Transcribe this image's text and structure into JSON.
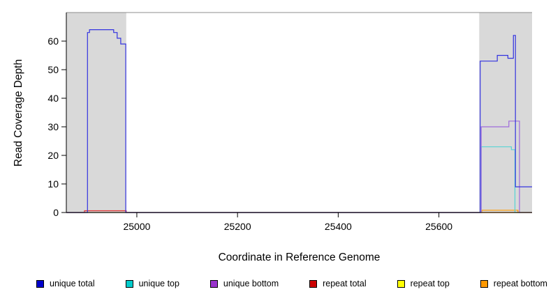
{
  "chart_data": {
    "type": "line",
    "title": "",
    "xlabel": "Coordinate in Reference Genome",
    "ylabel": "Read Coverage Depth",
    "xlim": [
      24860,
      25785
    ],
    "ylim": [
      0,
      70
    ],
    "xticks": [
      25000,
      25200,
      25400,
      25600
    ],
    "yticks": [
      0,
      10,
      20,
      30,
      40,
      50,
      60
    ],
    "grid": false,
    "legend_position": "bottom",
    "shaded_regions": [
      {
        "x0": 24860,
        "x1": 24979,
        "color": "#d9d9d9"
      },
      {
        "x0": 25680,
        "x1": 25785,
        "color": "#d9d9d9"
      }
    ],
    "series": [
      {
        "name": "repeat top",
        "color": "#FFFF00",
        "points": [
          [
            24860,
            0
          ],
          [
            25785,
            0
          ]
        ]
      },
      {
        "name": "repeat bottom",
        "color": "#FF9900",
        "points": [
          [
            24860,
            0
          ],
          [
            25685,
            0
          ],
          [
            25685,
            0.8
          ],
          [
            25757,
            0.8
          ],
          [
            25757,
            0
          ],
          [
            25785,
            0
          ]
        ]
      },
      {
        "name": "repeat total",
        "color": "#E03030",
        "points": [
          [
            24860,
            0
          ],
          [
            24896,
            0
          ],
          [
            24896,
            0.6
          ],
          [
            24979,
            0.6
          ],
          [
            24979,
            0
          ],
          [
            25785,
            0
          ]
        ]
      },
      {
        "name": "unique top",
        "color": "#55D4D4",
        "points": [
          [
            24860,
            0
          ],
          [
            25684,
            0
          ],
          [
            25684,
            23
          ],
          [
            25744,
            23
          ],
          [
            25744,
            22
          ],
          [
            25751,
            22
          ],
          [
            25751,
            0
          ],
          [
            25785,
            0
          ]
        ]
      },
      {
        "name": "unique bottom",
        "color": "#9E6BDB",
        "points": [
          [
            24860,
            0
          ],
          [
            25684,
            0
          ],
          [
            25684,
            30
          ],
          [
            25739,
            30
          ],
          [
            25739,
            32
          ],
          [
            25760,
            32
          ],
          [
            25760,
            0
          ],
          [
            25785,
            0
          ]
        ]
      },
      {
        "name": "unique total",
        "color": "#3232E0",
        "points": [
          [
            24860,
            0
          ],
          [
            24902,
            0
          ],
          [
            24902,
            63
          ],
          [
            24906,
            63
          ],
          [
            24906,
            64
          ],
          [
            24954,
            64
          ],
          [
            24954,
            63
          ],
          [
            24961,
            63
          ],
          [
            24961,
            61
          ],
          [
            24968,
            61
          ],
          [
            24968,
            59
          ],
          [
            24978,
            59
          ],
          [
            24978,
            0
          ],
          [
            25682,
            0
          ],
          [
            25682,
            53
          ],
          [
            25716,
            53
          ],
          [
            25716,
            55
          ],
          [
            25737,
            55
          ],
          [
            25737,
            54
          ],
          [
            25748,
            54
          ],
          [
            25748,
            62
          ],
          [
            25752,
            62
          ],
          [
            25752,
            9
          ],
          [
            25785,
            9
          ]
        ]
      }
    ],
    "legend": [
      {
        "label": "unique total",
        "color": "#0000CC"
      },
      {
        "label": "unique top",
        "color": "#00CCCC"
      },
      {
        "label": "unique bottom",
        "color": "#9933CC"
      },
      {
        "label": "repeat total",
        "color": "#CC0000"
      },
      {
        "label": "repeat top",
        "color": "#FFFF00"
      },
      {
        "label": "repeat bottom",
        "color": "#FF9900"
      }
    ]
  }
}
